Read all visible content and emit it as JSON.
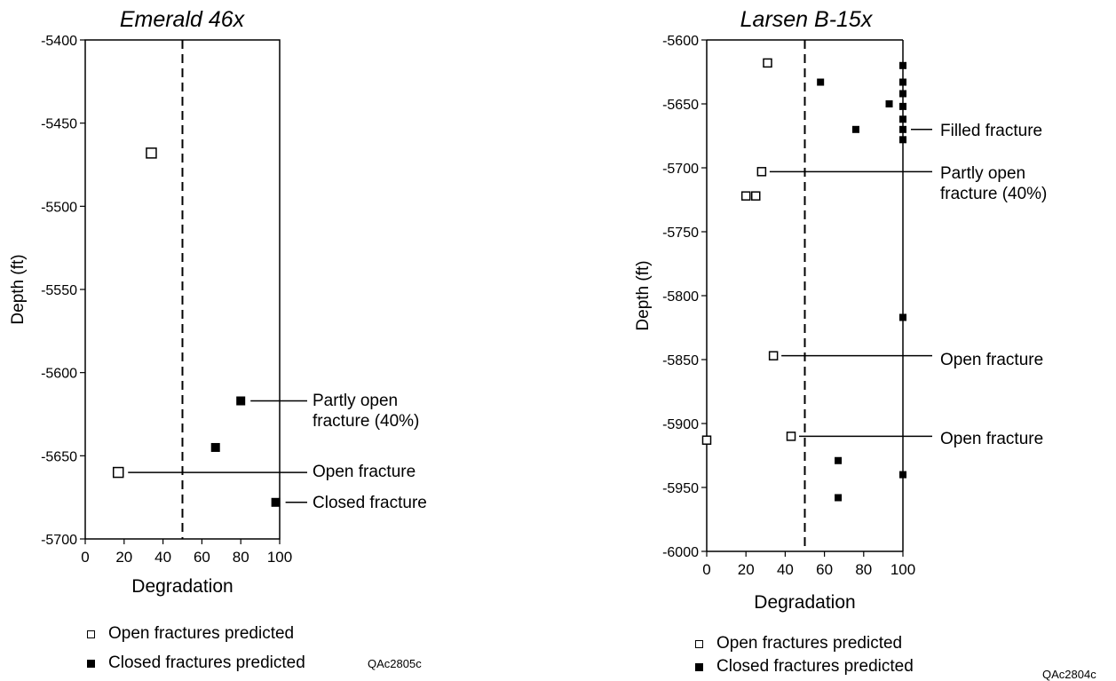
{
  "chart_data": [
    {
      "type": "scatter",
      "title": "Emerald 46x",
      "xlabel": "Degradation",
      "ylabel": "Depth (ft)",
      "xlim": [
        0,
        100
      ],
      "ylim": [
        -5700,
        -5400
      ],
      "x_ticks": [
        "0",
        "20",
        "40",
        "60",
        "80",
        "100"
      ],
      "y_ticks": [
        "-5400",
        "-5450",
        "-5500",
        "-5550",
        "-5600",
        "-5650",
        "-5700"
      ],
      "threshold_x": 50,
      "series": [
        {
          "name": "Open fractures predicted",
          "marker": "open-square",
          "points": [
            [
              34,
              -5468
            ],
            [
              17,
              -5660
            ]
          ]
        },
        {
          "name": "Closed fractures predicted",
          "marker": "filled-square",
          "points": [
            [
              80,
              -5617
            ],
            [
              67,
              -5645
            ],
            [
              98,
              -5678
            ]
          ]
        }
      ],
      "annotations": [
        {
          "text": [
            "Partly open",
            "fracture (40%)"
          ],
          "x": 80,
          "y": -5617
        },
        {
          "text": [
            "Open fracture"
          ],
          "x": 17,
          "y": -5660
        },
        {
          "text": [
            "Closed fracture"
          ],
          "x": 98,
          "y": -5678
        }
      ]
    },
    {
      "type": "scatter",
      "title": "Larsen B-15x",
      "xlabel": "Degradation",
      "ylabel": "Depth (ft)",
      "xlim": [
        0,
        100
      ],
      "ylim": [
        -6000,
        -5600
      ],
      "x_ticks": [
        "0",
        "20",
        "40",
        "60",
        "80",
        "100"
      ],
      "y_ticks": [
        "-5600",
        "-5650",
        "-5700",
        "-5750",
        "-5800",
        "-5850",
        "-5900",
        "-5950",
        "-6000"
      ],
      "threshold_x": 50,
      "series": [
        {
          "name": "Open fractures predicted",
          "marker": "open-square",
          "points": [
            [
              31,
              -5618
            ],
            [
              28,
              -5703
            ],
            [
              20,
              -5722
            ],
            [
              25,
              -5722
            ],
            [
              34,
              -5847
            ],
            [
              0,
              -5913
            ],
            [
              43,
              -5910
            ]
          ]
        },
        {
          "name": "Closed fractures predicted",
          "marker": "filled-square",
          "points": [
            [
              100,
              -5620
            ],
            [
              58,
              -5633
            ],
            [
              100,
              -5633
            ],
            [
              100,
              -5642
            ],
            [
              93,
              -5650
            ],
            [
              100,
              -5652
            ],
            [
              100,
              -5662
            ],
            [
              76,
              -5670
            ],
            [
              100,
              -5670
            ],
            [
              100,
              -5678
            ],
            [
              100,
              -5817
            ],
            [
              67,
              -5929
            ],
            [
              100,
              -5940
            ],
            [
              67,
              -5958
            ]
          ]
        }
      ],
      "annotations": [
        {
          "text": [
            "Filled fracture"
          ],
          "x": 100,
          "y": -5670
        },
        {
          "text": [
            "Partly open",
            "fracture (40%)"
          ],
          "x": 28,
          "y": -5703
        },
        {
          "text": [
            "Open fracture"
          ],
          "x": 34,
          "y": -5847
        },
        {
          "text": [
            "Open fracture"
          ],
          "x": 43,
          "y": -5910
        }
      ]
    }
  ],
  "legend_left": {
    "open_label": "Open fractures predicted",
    "closed_label": "Closed fractures predicted",
    "code": "QAc2805c"
  },
  "legend_right": {
    "open_label": "Open fractures predicted",
    "closed_label": "Closed fractures predicted",
    "code": "QAc2804c"
  }
}
